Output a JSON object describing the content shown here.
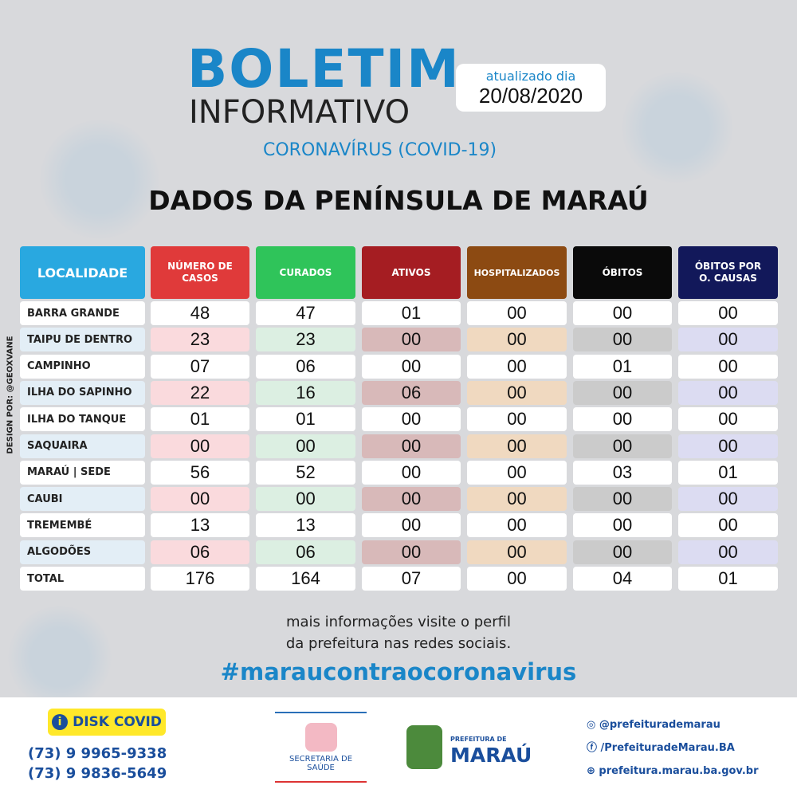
{
  "header": {
    "title": "BOLETIM",
    "subtitle": "INFORMATIVO",
    "topic": "CORONAVÍRUS (COVID-19)",
    "updated_label": "atualizado dia",
    "date": "20/08/2020"
  },
  "heading": "DADOS DA PENÍNSULA DE MARAÚ",
  "side_credit": "DESIGN POR: @GEOXVANE",
  "table": {
    "columns": [
      "LOCALIDADE",
      "NÚMERO DE CASOS",
      "CURADOS",
      "ATIVOS",
      "HOSPITALIZADOS",
      "ÓBITOS",
      "ÓBITOS POR O. CAUSAS"
    ],
    "rows": [
      [
        "BARRA GRANDE",
        "48",
        "47",
        "01",
        "00",
        "00",
        "00"
      ],
      [
        "TAIPU DE DENTRO",
        "23",
        "23",
        "00",
        "00",
        "00",
        "00"
      ],
      [
        "CAMPINHO",
        "07",
        "06",
        "00",
        "00",
        "01",
        "00"
      ],
      [
        "ILHA DO SAPINHO",
        "22",
        "16",
        "06",
        "00",
        "00",
        "00"
      ],
      [
        "ILHA DO TANQUE",
        "01",
        "01",
        "00",
        "00",
        "00",
        "00"
      ],
      [
        "SAQUAIRA",
        "00",
        "00",
        "00",
        "00",
        "00",
        "00"
      ],
      [
        "MARAÚ | SEDE",
        "56",
        "52",
        "00",
        "00",
        "03",
        "01"
      ],
      [
        "CAUBI",
        "00",
        "00",
        "00",
        "00",
        "00",
        "00"
      ],
      [
        "TREMEMBÉ",
        "13",
        "13",
        "00",
        "00",
        "00",
        "00"
      ],
      [
        "ALGODÕES",
        "06",
        "06",
        "00",
        "00",
        "00",
        "00"
      ],
      [
        "TOTAL",
        "176",
        "164",
        "07",
        "00",
        "04",
        "01"
      ]
    ]
  },
  "info": {
    "line1": "mais informações visite o perfil",
    "line2": "da prefeitura nas redes sociais.",
    "hashtag": "#maraucontraocoronavirus"
  },
  "footer": {
    "disk_covid": "DISK COVID",
    "phones": [
      "(73) 9 9965-9338",
      "(73) 9 9836-5649"
    ],
    "secretaria": "SECRETARIA DE SAÚDE",
    "prefeitura_label": "PREFEITURA DE",
    "prefeitura_name": "MARAÚ",
    "social": [
      "@prefeiturademarau",
      "/PrefeituradeMarau.BA",
      "prefeitura.marau.ba.gov.br"
    ]
  }
}
